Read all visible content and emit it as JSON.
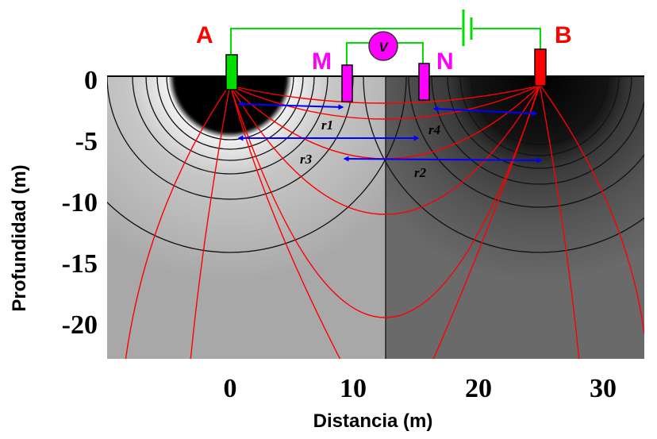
{
  "diagram": {
    "x_axis": {
      "label": "Distancia (m)",
      "ticks": [
        {
          "value": 0,
          "label": "0"
        },
        {
          "value": 10,
          "label": "10"
        },
        {
          "value": 20,
          "label": "20"
        },
        {
          "value": 30,
          "label": "30"
        }
      ]
    },
    "y_axis": {
      "label": "Profundidad (m)",
      "ticks": [
        {
          "value": 0,
          "label": "0"
        },
        {
          "value": -5,
          "label": "-5"
        },
        {
          "value": -10,
          "label": "-10"
        },
        {
          "value": -15,
          "label": "-15"
        },
        {
          "value": -20,
          "label": "-20"
        }
      ]
    },
    "electrodes": {
      "A": {
        "label": "A",
        "position_m": 0,
        "color": "#00dd00"
      },
      "M": {
        "label": "M",
        "position_m": 9,
        "color": "#ff00ff"
      },
      "N": {
        "label": "N",
        "position_m": 16,
        "color": "#ff00ff"
      },
      "B": {
        "label": "B",
        "position_m": 25,
        "color": "#ff0000"
      }
    },
    "voltmeter": {
      "label": "V",
      "color": "#ff00ff"
    },
    "distances": [
      {
        "label": "r1",
        "from": "A",
        "to": "M"
      },
      {
        "label": "r2",
        "from": "M",
        "to": "B"
      },
      {
        "label": "r3",
        "from": "A",
        "to": "N"
      },
      {
        "label": "r4",
        "from": "N",
        "to": "B"
      }
    ],
    "colors": {
      "current_lines": "#ff0000",
      "circuit_wire": "#00dd00",
      "distance_arrows": "#0000ff",
      "label_red": "#ff0000",
      "label_magenta": "#ff00ff"
    }
  }
}
